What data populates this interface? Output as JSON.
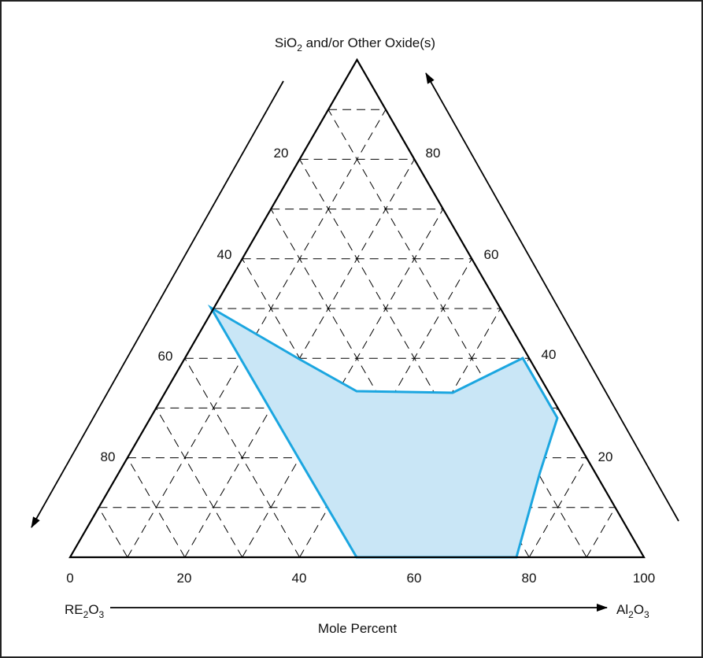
{
  "diagram": {
    "type": "ternary-phase-diagram",
    "top_vertex_label": {
      "prefix": "SiO",
      "subscript": "2",
      "suffix": " and/or Other Oxide(s)"
    },
    "left_axis_label": {
      "part1": "RE",
      "sub1": "2",
      "part2": "O",
      "sub2": "3"
    },
    "right_axis_label": {
      "part1": "Al",
      "sub1": "2",
      "part2": "O",
      "sub2": "3"
    },
    "bottom_caption": "Mole Percent",
    "bottom_ticks": [
      "0",
      "20",
      "40",
      "60",
      "80",
      "100"
    ],
    "left_edge_ticks": [
      "20",
      "40",
      "60",
      "80"
    ],
    "right_edge_ticks": [
      "80",
      "60",
      "40",
      "20"
    ],
    "grid_style": "dashed",
    "region_stroke_color": "#1BA6E0",
    "region_fill_color": "#C9E6F6",
    "frame_color": "#000000"
  }
}
